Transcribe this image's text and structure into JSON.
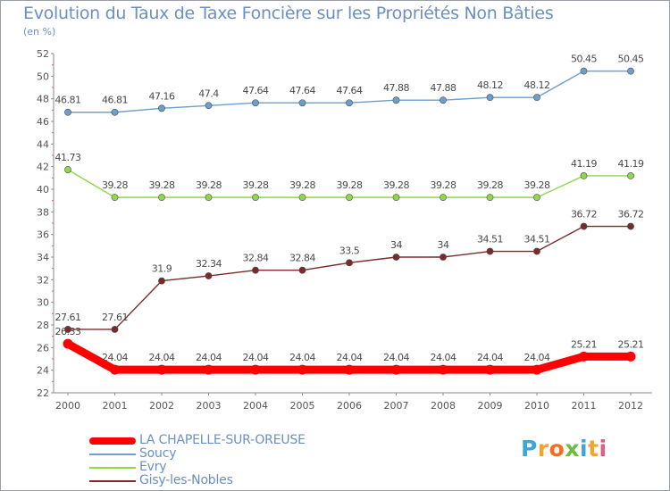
{
  "title": "Evolution du Taux de Taxe Foncière sur les Propriétés Non Bâties",
  "subtitle": "(en %)",
  "logo_text": "Proxiti",
  "chart_data": {
    "type": "line",
    "title": "Evolution du Taux de Taxe Foncière sur les Propriétés Non Bâties",
    "ylabel": "(en %)",
    "xlabel": "",
    "ylim": [
      22,
      52
    ],
    "yticks": [
      22,
      24,
      26,
      28,
      30,
      32,
      34,
      36,
      38,
      40,
      42,
      44,
      46,
      48,
      50,
      52
    ],
    "grid": false,
    "legend": "bottom-left",
    "categories": [
      "2000",
      "2001",
      "2002",
      "2003",
      "2004",
      "2005",
      "2006",
      "2007",
      "2008",
      "2009",
      "2010",
      "2011",
      "2012"
    ],
    "series": [
      {
        "name": "LA CHAPELLE-SUR-OREUSE",
        "color": "#ff0000",
        "values": [
          26.33,
          24.04,
          24.04,
          24.04,
          24.04,
          24.04,
          24.04,
          24.04,
          24.04,
          24.04,
          24.04,
          25.21,
          25.21
        ],
        "labels": [
          "26.33",
          "24.04",
          "24.04",
          "24.04",
          "24.04",
          "24.04",
          "24.04",
          "24.04",
          "24.04",
          "24.04",
          "24.04",
          "25.21",
          "25.21"
        ]
      },
      {
        "name": "Soucy",
        "color": "#6c9fce",
        "values": [
          46.81,
          46.81,
          47.16,
          47.4,
          47.64,
          47.64,
          47.64,
          47.88,
          47.88,
          48.12,
          48.12,
          50.45,
          50.45
        ],
        "labels": [
          "46.81",
          "46.81",
          "47.16",
          "47.4",
          "47.64",
          "47.64",
          "47.64",
          "47.88",
          "47.88",
          "48.12",
          "48.12",
          "50.45",
          "50.45"
        ]
      },
      {
        "name": "Evry",
        "color": "#8ed84a",
        "values": [
          41.73,
          39.28,
          39.28,
          39.28,
          39.28,
          39.28,
          39.28,
          39.28,
          39.28,
          39.28,
          39.28,
          41.19,
          41.19
        ],
        "labels": [
          "41.73",
          "39.28",
          "39.28",
          "39.28",
          "39.28",
          "39.28",
          "39.28",
          "39.28",
          "39.28",
          "39.28",
          "39.28",
          "41.19",
          "41.19"
        ]
      },
      {
        "name": "Gisy-les-Nobles",
        "color": "#7a2a2a",
        "values": [
          27.61,
          27.61,
          31.9,
          32.34,
          32.84,
          32.84,
          33.5,
          34,
          34,
          34.51,
          34.51,
          36.72,
          36.72
        ],
        "labels": [
          "27.61",
          "27.61",
          "31.9",
          "32.34",
          "32.84",
          "32.84",
          "33.5",
          "34",
          "34",
          "34.51",
          "34.51",
          "36.72",
          "36.72"
        ]
      }
    ]
  }
}
